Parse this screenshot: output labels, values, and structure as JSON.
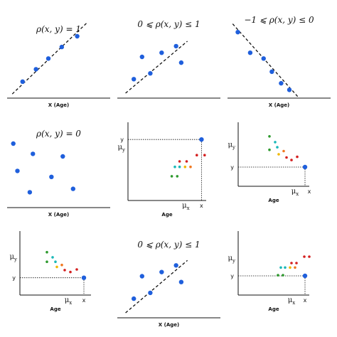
{
  "colors": {
    "axis": "#111111",
    "blue": "#1f5fdc",
    "green": "#2e9a2e",
    "teal": "#1ab8b8",
    "yellow": "#f0b800",
    "orange": "#f07820",
    "red": "#d42020"
  },
  "chart_data": [
    {
      "type": "scatter",
      "id": "p1",
      "title": "ρ(x, y) = 1",
      "xlabel": "X (Age)",
      "ylabel": "",
      "xlim": [
        0,
        10
      ],
      "ylim": [
        0,
        10
      ],
      "points": [
        {
          "x": 1.5,
          "y": 2.0,
          "color": "blue"
        },
        {
          "x": 2.8,
          "y": 3.5,
          "color": "blue"
        },
        {
          "x": 4.0,
          "y": 4.8,
          "color": "blue"
        },
        {
          "x": 5.3,
          "y": 6.2,
          "color": "blue"
        },
        {
          "x": 6.8,
          "y": 7.5,
          "color": "blue"
        }
      ],
      "line": {
        "x": [
          0.5,
          7.8
        ],
        "y": [
          0.5,
          9.2
        ],
        "dashed": true
      }
    },
    {
      "type": "scatter",
      "id": "p2",
      "title": "0 ⩽ ρ(x, y) ≤ 1",
      "xlabel": "",
      "ylabel": "",
      "xlim": [
        0,
        10
      ],
      "ylim": [
        0,
        10
      ],
      "points": [
        {
          "x": 1.6,
          "y": 2.3,
          "color": "blue"
        },
        {
          "x": 2.4,
          "y": 5.0,
          "color": "blue"
        },
        {
          "x": 3.2,
          "y": 3.0,
          "color": "blue"
        },
        {
          "x": 4.3,
          "y": 5.5,
          "color": "blue"
        },
        {
          "x": 5.7,
          "y": 6.3,
          "color": "blue"
        },
        {
          "x": 6.2,
          "y": 4.3,
          "color": "blue"
        }
      ],
      "line": {
        "x": [
          0.8,
          6.8
        ],
        "y": [
          0.6,
          6.9
        ],
        "dashed": true
      }
    },
    {
      "type": "scatter",
      "id": "p3",
      "title": "−1 ⩽ ρ(x, y) ≤ 0",
      "xlabel": "X (Age)",
      "ylabel": "",
      "xlim": [
        0,
        10
      ],
      "ylim": [
        0,
        10
      ],
      "points": [
        {
          "x": 1.0,
          "y": 8.0,
          "color": "blue"
        },
        {
          "x": 2.2,
          "y": 5.5,
          "color": "blue"
        },
        {
          "x": 3.5,
          "y": 4.8,
          "color": "blue"
        },
        {
          "x": 4.3,
          "y": 3.2,
          "color": "blue"
        },
        {
          "x": 5.2,
          "y": 1.8,
          "color": "blue"
        },
        {
          "x": 6.0,
          "y": 1.0,
          "color": "blue"
        }
      ],
      "line": {
        "x": [
          0.5,
          6.8
        ],
        "y": [
          9.0,
          0.2
        ],
        "dashed": true
      }
    },
    {
      "type": "scatter",
      "id": "p4",
      "title": "ρ(x, y) = 0",
      "xlabel": "X (Age)",
      "ylabel": "",
      "xlim": [
        0,
        10
      ],
      "ylim": [
        0,
        10
      ],
      "points": [
        {
          "x": 0.6,
          "y": 7.5,
          "color": "blue"
        },
        {
          "x": 1.0,
          "y": 4.3,
          "color": "blue"
        },
        {
          "x": 2.5,
          "y": 6.3,
          "color": "blue"
        },
        {
          "x": 2.2,
          "y": 1.8,
          "color": "blue"
        },
        {
          "x": 4.3,
          "y": 3.6,
          "color": "blue"
        },
        {
          "x": 5.4,
          "y": 6.0,
          "color": "blue"
        },
        {
          "x": 6.4,
          "y": 2.2,
          "color": "blue"
        }
      ]
    },
    {
      "type": "scatter",
      "id": "p5",
      "title": "",
      "xlabel": "Age",
      "ylabel": "",
      "xlim": [
        0,
        10
      ],
      "ylim": [
        0,
        10
      ],
      "ytick_labels": [
        "μ_y",
        "y"
      ],
      "ytick_values": [
        6.8,
        7.8
      ],
      "xtick_labels": [
        "μ_x",
        "x"
      ],
      "xtick_values": [
        7.4,
        9.4
      ],
      "points": [
        {
          "x": 5.6,
          "y": 3.1,
          "color": "green"
        },
        {
          "x": 6.3,
          "y": 3.1,
          "color": "green"
        },
        {
          "x": 6.0,
          "y": 4.3,
          "color": "teal"
        },
        {
          "x": 6.6,
          "y": 4.3,
          "color": "teal"
        },
        {
          "x": 7.3,
          "y": 4.3,
          "color": "yellow"
        },
        {
          "x": 8.0,
          "y": 4.3,
          "color": "orange"
        },
        {
          "x": 6.6,
          "y": 5.0,
          "color": "red"
        },
        {
          "x": 7.5,
          "y": 5.0,
          "color": "red"
        },
        {
          "x": 8.8,
          "y": 5.8,
          "color": "red"
        },
        {
          "x": 9.8,
          "y": 5.8,
          "color": "red"
        },
        {
          "x": 9.4,
          "y": 7.8,
          "color": "blue",
          "large": true
        }
      ],
      "guides": {
        "x": 9.4,
        "y": 7.8
      }
    },
    {
      "type": "scatter",
      "id": "p6",
      "title": "",
      "xlabel": "Age",
      "ylabel": "",
      "xlim": [
        0,
        10
      ],
      "ylim": [
        0,
        10
      ],
      "ytick_labels": [
        "μ_y",
        "y"
      ],
      "ytick_values": [
        6.5,
        3.0
      ],
      "xtick_labels": [
        "μ_x",
        "x"
      ],
      "xtick_values": [
        8.0,
        10.0
      ],
      "points": [
        {
          "x": 4.4,
          "y": 7.8,
          "color": "green"
        },
        {
          "x": 4.4,
          "y": 5.7,
          "color": "green"
        },
        {
          "x": 5.2,
          "y": 6.9,
          "color": "teal"
        },
        {
          "x": 5.5,
          "y": 6.1,
          "color": "teal"
        },
        {
          "x": 5.7,
          "y": 5.0,
          "color": "yellow"
        },
        {
          "x": 6.4,
          "y": 5.5,
          "color": "orange"
        },
        {
          "x": 6.8,
          "y": 4.5,
          "color": "red"
        },
        {
          "x": 7.5,
          "y": 4.1,
          "color": "red"
        },
        {
          "x": 8.3,
          "y": 4.6,
          "color": "red"
        },
        {
          "x": 9.4,
          "y": 3.0,
          "color": "blue",
          "large": true
        }
      ],
      "guides": {
        "x": 9.4,
        "y": 3.0
      }
    },
    {
      "type": "scatter",
      "id": "p7",
      "title": "",
      "xlabel": "Age",
      "ylabel": "",
      "xlim": [
        0,
        10
      ],
      "ylim": [
        0,
        10
      ],
      "ytick_labels": [
        "μ_y",
        "y"
      ],
      "ytick_values": [
        6.0,
        2.7
      ],
      "xtick_labels": [
        "μ_x",
        "x"
      ],
      "xtick_values": [
        6.8,
        9.0
      ],
      "points": [
        {
          "x": 3.8,
          "y": 6.7,
          "color": "green"
        },
        {
          "x": 3.8,
          "y": 5.2,
          "color": "green"
        },
        {
          "x": 4.6,
          "y": 5.9,
          "color": "teal"
        },
        {
          "x": 5.0,
          "y": 5.2,
          "color": "teal"
        },
        {
          "x": 5.2,
          "y": 4.4,
          "color": "yellow"
        },
        {
          "x": 5.9,
          "y": 4.7,
          "color": "orange"
        },
        {
          "x": 6.3,
          "y": 3.9,
          "color": "red"
        },
        {
          "x": 7.1,
          "y": 3.6,
          "color": "red"
        },
        {
          "x": 8.0,
          "y": 4.0,
          "color": "red"
        },
        {
          "x": 9.0,
          "y": 2.7,
          "color": "blue",
          "large": true
        }
      ],
      "guides": {
        "x": 9.0,
        "y": 2.7
      }
    },
    {
      "type": "scatter",
      "id": "p8",
      "title": "0 ⩽ ρ(x, y) ≤ 1",
      "xlabel": "X (Age)",
      "ylabel": "",
      "xlim": [
        0,
        10
      ],
      "ylim": [
        0,
        10
      ],
      "points": [
        {
          "x": 1.6,
          "y": 2.3,
          "color": "blue"
        },
        {
          "x": 2.4,
          "y": 5.0,
          "color": "blue"
        },
        {
          "x": 3.2,
          "y": 3.0,
          "color": "blue"
        },
        {
          "x": 4.3,
          "y": 5.5,
          "color": "blue"
        },
        {
          "x": 5.7,
          "y": 6.3,
          "color": "blue"
        },
        {
          "x": 6.2,
          "y": 4.3,
          "color": "blue"
        }
      ],
      "line": {
        "x": [
          0.8,
          6.8
        ],
        "y": [
          0.6,
          6.9
        ],
        "dashed": true
      }
    },
    {
      "type": "scatter",
      "id": "p9",
      "title": "",
      "xlabel": "Age",
      "ylabel": "",
      "xlim": [
        0,
        10
      ],
      "ylim": [
        0,
        10
      ],
      "ytick_labels": [
        "μ_y",
        "y"
      ],
      "ytick_values": [
        5.8,
        3.0
      ],
      "xtick_labels": [
        "μ_x",
        "x"
      ],
      "xtick_values": [
        7.5,
        9.4
      ],
      "points": [
        {
          "x": 5.6,
          "y": 3.1,
          "color": "green"
        },
        {
          "x": 6.3,
          "y": 3.1,
          "color": "green"
        },
        {
          "x": 6.0,
          "y": 4.3,
          "color": "teal"
        },
        {
          "x": 6.6,
          "y": 4.3,
          "color": "teal"
        },
        {
          "x": 7.3,
          "y": 4.3,
          "color": "yellow"
        },
        {
          "x": 8.0,
          "y": 4.3,
          "color": "orange"
        },
        {
          "x": 7.5,
          "y": 5.0,
          "color": "red"
        },
        {
          "x": 8.2,
          "y": 5.0,
          "color": "red"
        },
        {
          "x": 9.3,
          "y": 6.0,
          "color": "red"
        },
        {
          "x": 10.0,
          "y": 6.0,
          "color": "red"
        },
        {
          "x": 9.4,
          "y": 3.0,
          "color": "blue",
          "large": true
        }
      ],
      "guides": {
        "x": 9.4,
        "y": 3.0
      }
    }
  ]
}
